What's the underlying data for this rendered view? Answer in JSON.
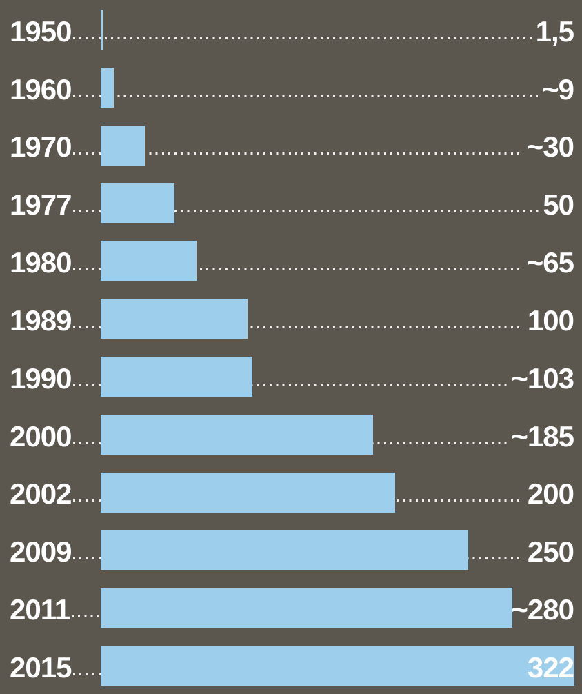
{
  "colors": {
    "background": "#5b574f",
    "bar": "#9dcfec",
    "text": "#ffffff",
    "dots": "#f0eeea"
  },
  "chart_data": {
    "type": "bar",
    "orientation": "horizontal",
    "categories": [
      "1950",
      "1960",
      "1970",
      "1977",
      "1980",
      "1989",
      "1990",
      "2000",
      "2002",
      "2009",
      "2011",
      "2015"
    ],
    "values": [
      1.5,
      9,
      30,
      50,
      65,
      100,
      103,
      185,
      200,
      250,
      280,
      322
    ],
    "value_labels": [
      "1,5",
      "~9",
      "~30",
      "50",
      "~65",
      "100",
      "~103",
      "~185",
      "200",
      "250",
      "~280",
      "322"
    ],
    "title": "",
    "xlabel": "",
    "ylabel": "",
    "xlim": [
      0,
      322
    ],
    "grid": false,
    "legend": false,
    "leader_lines": "dotted",
    "last_value_inside_bar": true
  }
}
